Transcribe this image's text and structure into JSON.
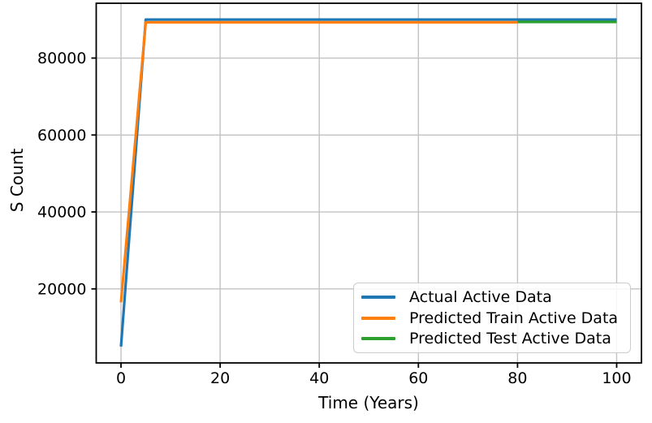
{
  "figure": {
    "background": "#ffffff"
  },
  "chart_data": {
    "type": "line",
    "title": "",
    "xlabel": "Time (Years)",
    "ylabel": "S Count",
    "xlim": [
      -5,
      105
    ],
    "ylim": [
      750,
      94250
    ],
    "x_ticks": [
      0,
      20,
      40,
      60,
      80,
      100
    ],
    "y_ticks": [
      20000,
      40000,
      60000,
      80000
    ],
    "grid": true,
    "grid_color": "#c2c2c2",
    "axis_color": "#000000",
    "legend_position": "lower right",
    "series": [
      {
        "name": "Actual Active Data",
        "color": "#1f77b4",
        "points": [
          [
            0,
            5000
          ],
          [
            1,
            22000
          ],
          [
            2,
            39000
          ],
          [
            3,
            56000
          ],
          [
            4,
            73000
          ],
          [
            5,
            90000
          ],
          [
            10,
            90000
          ],
          [
            20,
            90000
          ],
          [
            30,
            90000
          ],
          [
            40,
            90000
          ],
          [
            50,
            90000
          ],
          [
            60,
            90000
          ],
          [
            70,
            90000
          ],
          [
            80,
            90000
          ],
          [
            90,
            90000
          ],
          [
            100,
            90000
          ]
        ]
      },
      {
        "name": "Predicted Train Active Data",
        "color": "#ff7f0e",
        "points": [
          [
            0,
            16500
          ],
          [
            1,
            31060
          ],
          [
            2,
            45620
          ],
          [
            3,
            60180
          ],
          [
            4,
            74740
          ],
          [
            5,
            89300
          ],
          [
            10,
            89300
          ],
          [
            20,
            89300
          ],
          [
            30,
            89300
          ],
          [
            40,
            89300
          ],
          [
            50,
            89300
          ],
          [
            60,
            89300
          ],
          [
            70,
            89300
          ],
          [
            80,
            89300
          ]
        ]
      },
      {
        "name": "Predicted Test Active Data",
        "color": "#2ca02c",
        "points": [
          [
            80,
            89400
          ],
          [
            90,
            89400
          ],
          [
            100,
            89400
          ]
        ]
      }
    ]
  }
}
